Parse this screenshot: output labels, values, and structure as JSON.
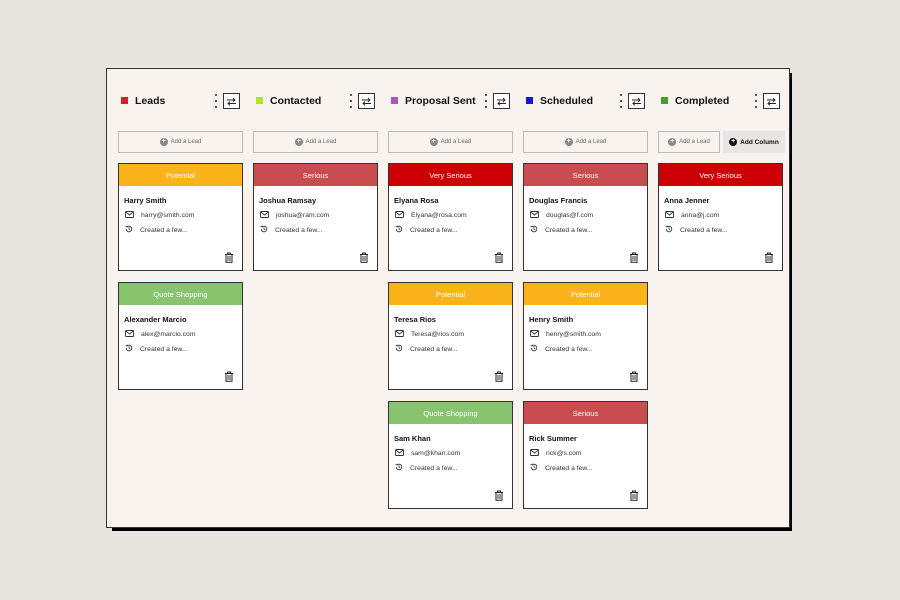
{
  "board": {
    "add_lead_label": "Add a Lead",
    "add_column_label": "Add Column",
    "columns": [
      {
        "title": "Leads",
        "color": "#d0242a",
        "cards": [
          {
            "tag": "Potential",
            "tag_color": "#fab419",
            "name": "Harry Smith",
            "email": "harry@smith.com",
            "created": "Created a few..."
          },
          {
            "tag": "Quote Shopping",
            "tag_color": "#88c46d",
            "name": "Alexander Marcio",
            "email": "alex@marcio.com",
            "created": "Created a few..."
          }
        ]
      },
      {
        "title": "Contacted",
        "color": "#b0e623",
        "cards": [
          {
            "tag": "Serious",
            "tag_color": "#c94c4e",
            "name": "Joshua Ramsay",
            "email": "joshua@ram.com",
            "created": "Created a few..."
          }
        ]
      },
      {
        "title": "Proposal Sent",
        "color": "#a15bb5",
        "cards": [
          {
            "tag": "Very Serious",
            "tag_color": "#cc0004",
            "name": "Elyana Rosa",
            "email": "Elyana@rosa.com",
            "created": "Created a few..."
          },
          {
            "tag": "Potential",
            "tag_color": "#fab419",
            "name": "Teresa Rios",
            "email": "Teresa@rios.com",
            "created": "Created a few..."
          },
          {
            "tag": "Quote Shopping",
            "tag_color": "#88c46d",
            "name": "Sam Khan",
            "email": "sam@khan.com",
            "created": "Created a few..."
          }
        ]
      },
      {
        "title": "Scheduled",
        "color": "#1418d6",
        "cards": [
          {
            "tag": "Serious",
            "tag_color": "#c94c4e",
            "name": "Douglas Francis",
            "email": "douglas@f.com",
            "created": "Created a few..."
          },
          {
            "tag": "Potential",
            "tag_color": "#fab419",
            "name": "Henry Smith",
            "email": "henry@smith.com",
            "created": "Created a few..."
          },
          {
            "tag": "Serious",
            "tag_color": "#c94c4e",
            "name": "Rick Summer",
            "email": "rick@s.com",
            "created": "Created a few..."
          }
        ]
      },
      {
        "title": "Completed",
        "color": "#4c9a36",
        "cards": [
          {
            "tag": "Very Serious",
            "tag_color": "#cc0004",
            "name": "Anna Jenner",
            "email": "anna@j.com",
            "created": "Created a few..."
          }
        ]
      }
    ]
  },
  "icons": {
    "email": "email-icon",
    "created": "history-icon",
    "delete": "trash-icon",
    "menu": "kebab-menu-icon",
    "swap": "swap-arrows-icon"
  }
}
